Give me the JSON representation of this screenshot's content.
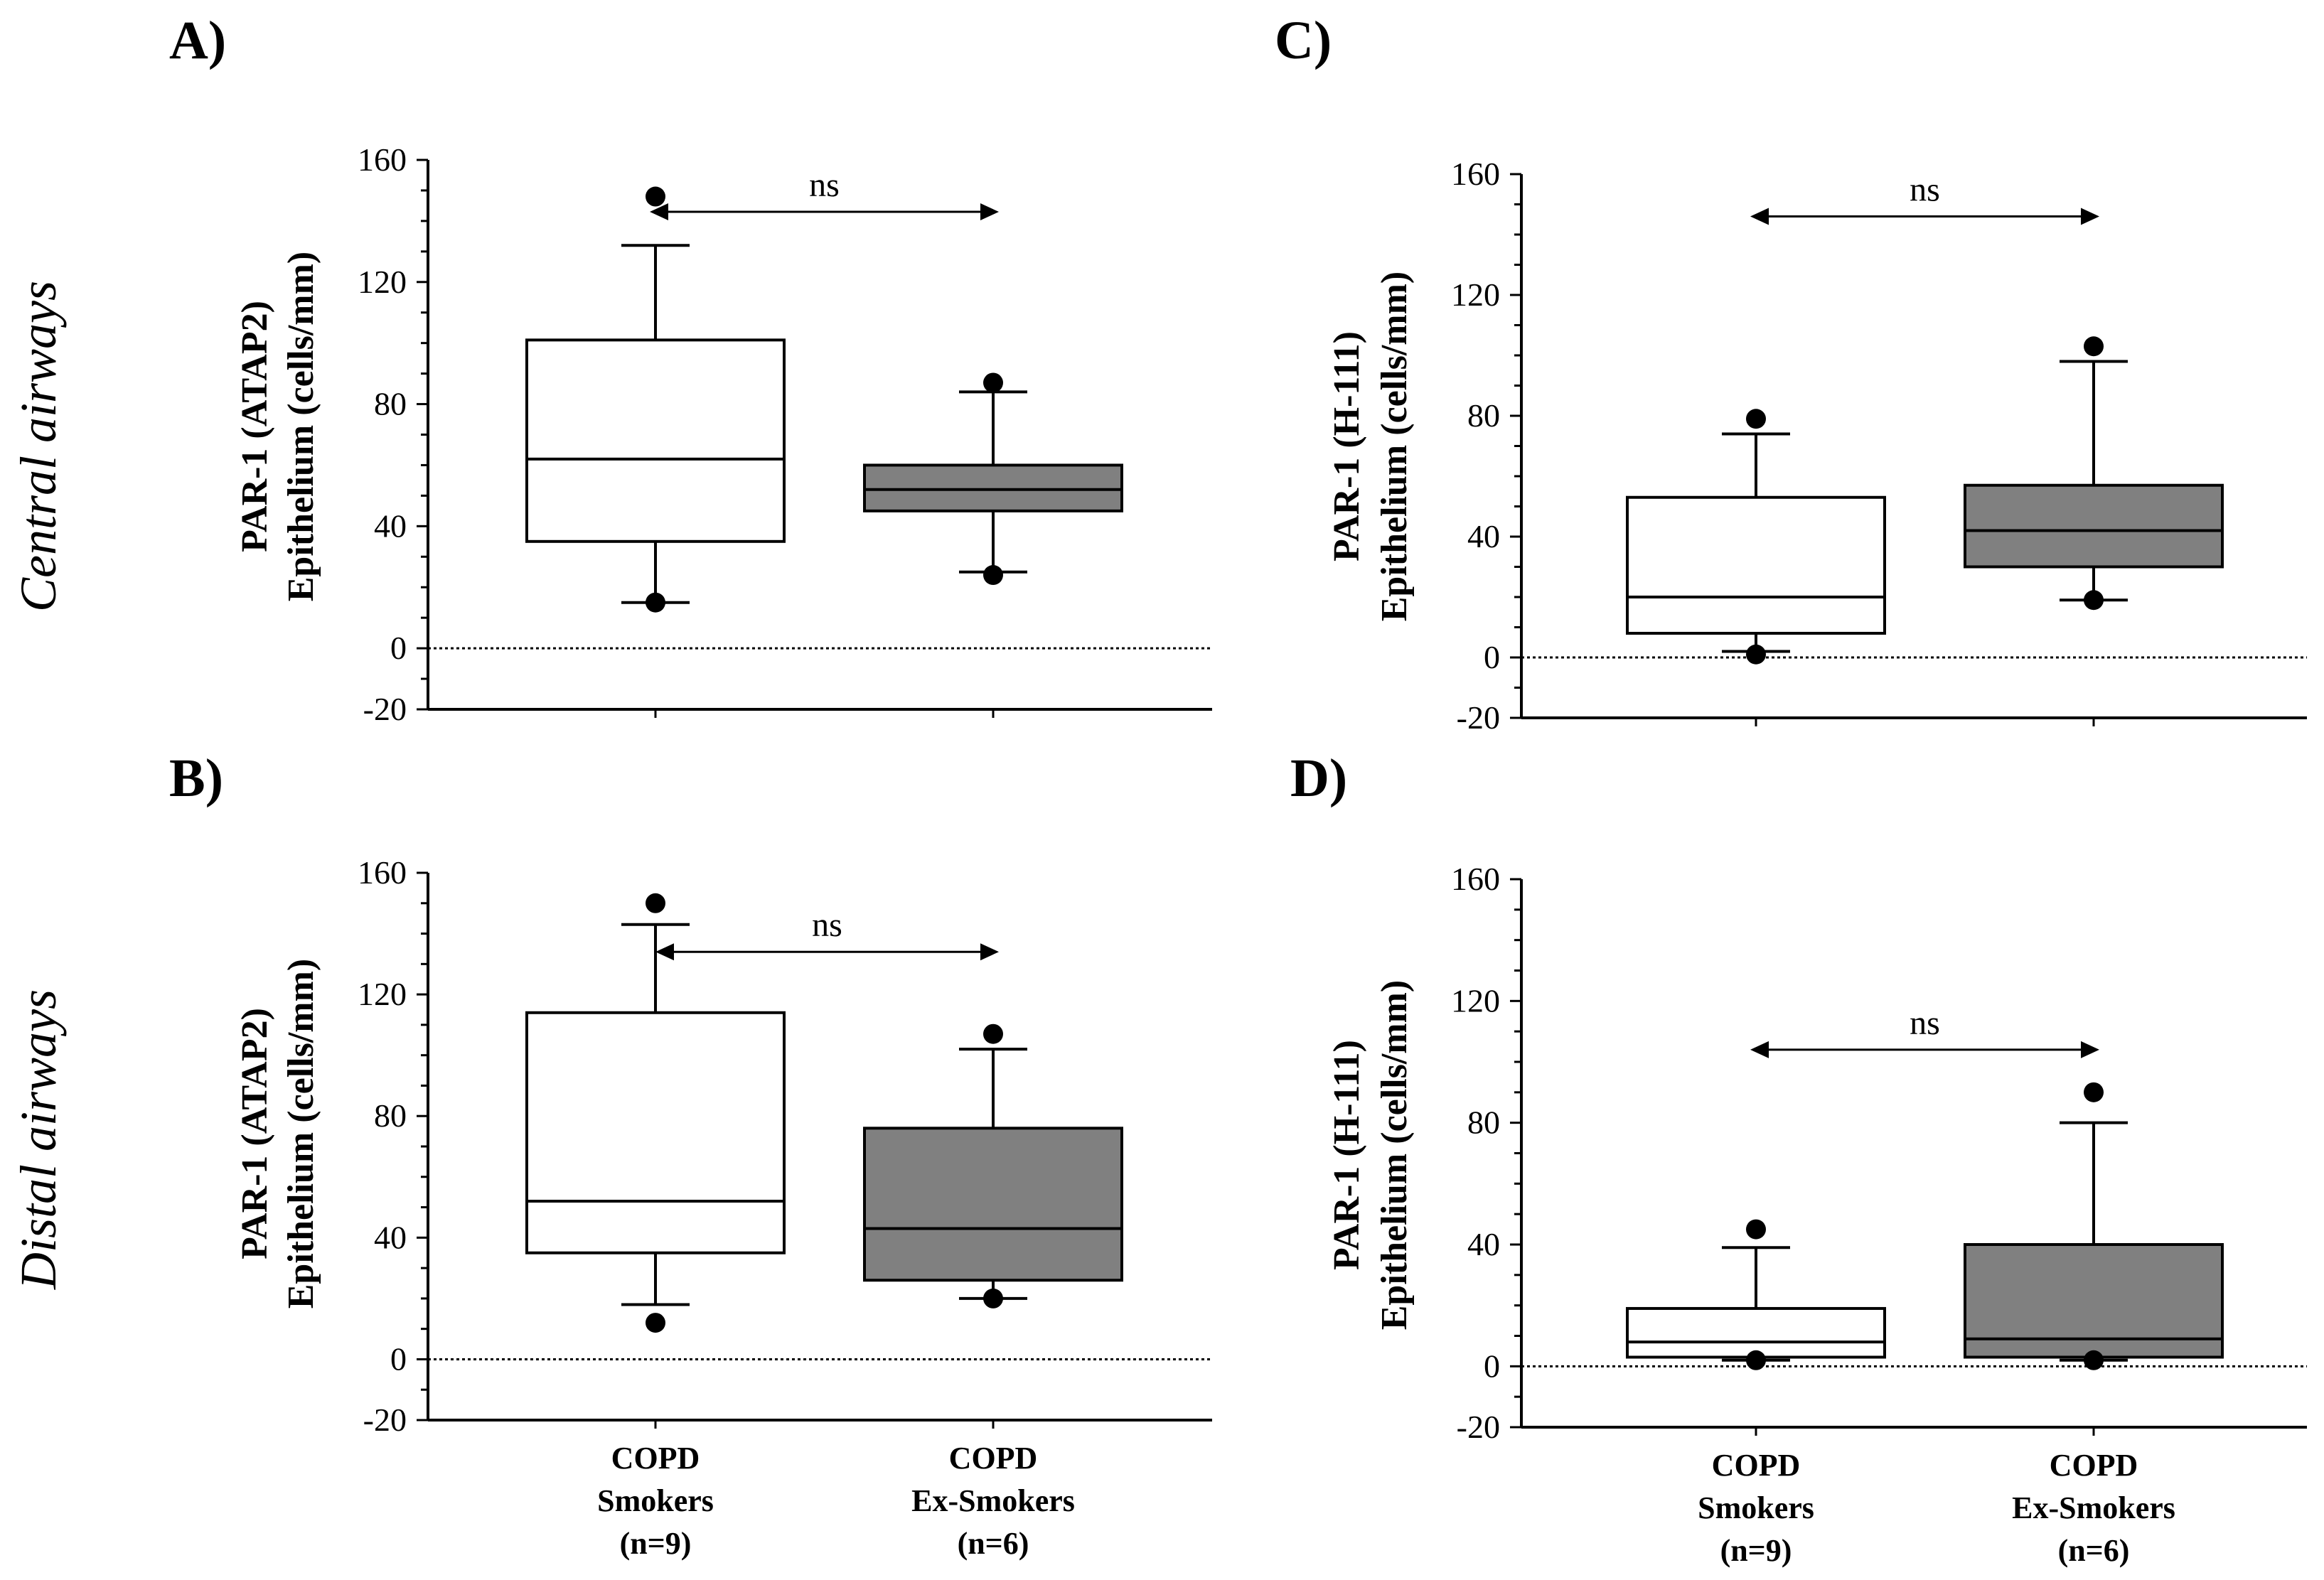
{
  "row_labels": [
    "Central airways",
    "Distal airways"
  ],
  "colors": {
    "smokers_fill": "#ffffff",
    "ex_smokers_fill": "#808080",
    "ink": "#000000"
  },
  "chart_data": [
    {
      "panel": "A)",
      "type": "boxplot",
      "row": "Central airways",
      "ylabel": [
        "PAR-1 (ATAP2)",
        "Epithelium (cells/mm)"
      ],
      "ylim": [
        -20,
        160
      ],
      "yticks": [
        -20,
        0,
        40,
        80,
        120,
        160
      ],
      "x_categories": [],
      "reference_line": 0,
      "significance": {
        "label": "ns",
        "y": 143,
        "from": 0,
        "to": 1
      },
      "groups": [
        {
          "name": "COPD Smokers",
          "n": 9,
          "whisker_low": 15,
          "q1": 35,
          "median": 62,
          "q3": 101,
          "whisker_high": 132,
          "points": [
            148,
            15
          ]
        },
        {
          "name": "COPD Ex-Smokers",
          "n": 6,
          "whisker_low": 25,
          "q1": 45,
          "median": 52,
          "q3": 60,
          "whisker_high": 84,
          "points": [
            87,
            24
          ]
        }
      ]
    },
    {
      "panel": "C)",
      "type": "boxplot",
      "row": "Central airways",
      "ylabel": [
        "PAR-1 (H-111)",
        "Epithelium (cells/mm)"
      ],
      "ylim": [
        -20,
        160
      ],
      "yticks": [
        -20,
        0,
        40,
        80,
        120,
        160
      ],
      "x_categories": [],
      "reference_line": 0,
      "significance": {
        "label": "ns",
        "y": 146,
        "from": 0,
        "to": 1
      },
      "groups": [
        {
          "name": "COPD Smokers",
          "n": 9,
          "whisker_low": 2,
          "q1": 8,
          "median": 20,
          "q3": 53,
          "whisker_high": 74,
          "points": [
            79,
            1
          ]
        },
        {
          "name": "COPD Ex-Smokers",
          "n": 6,
          "whisker_low": 19,
          "q1": 30,
          "median": 42,
          "q3": 57,
          "whisker_high": 98,
          "points": [
            103,
            19
          ]
        }
      ]
    },
    {
      "panel": "B)",
      "type": "boxplot",
      "row": "Distal airways",
      "ylabel": [
        "PAR-1 (ATAP2)",
        "Epithelium (cells/mm)"
      ],
      "ylim": [
        -20,
        160
      ],
      "yticks": [
        -20,
        0,
        40,
        80,
        120,
        160
      ],
      "x_categories": [
        [
          "COPD",
          "Smokers",
          "(n=9)"
        ],
        [
          "COPD",
          "Ex-Smokers",
          "(n=6)"
        ]
      ],
      "reference_line": 0,
      "significance": {
        "label": "ns",
        "y": 134,
        "from": 0,
        "to": 1
      },
      "groups": [
        {
          "name": "COPD Smokers",
          "n": 9,
          "whisker_low": 18,
          "q1": 35,
          "median": 52,
          "q3": 114,
          "whisker_high": 143,
          "points": [
            150,
            12
          ]
        },
        {
          "name": "COPD Ex-Smokers",
          "n": 6,
          "whisker_low": 20,
          "q1": 26,
          "median": 43,
          "q3": 76,
          "whisker_high": 102,
          "points": [
            107,
            20
          ]
        }
      ]
    },
    {
      "panel": "D)",
      "type": "boxplot",
      "row": "Distal airways",
      "ylabel": [
        "PAR-1 (H-111)",
        "Epithelium (cells/mm)"
      ],
      "ylim": [
        -20,
        160
      ],
      "yticks": [
        -20,
        0,
        40,
        80,
        120,
        160
      ],
      "x_categories": [
        [
          "COPD",
          "Smokers",
          "(n=9)"
        ],
        [
          "COPD",
          "Ex-Smokers",
          "(n=6)"
        ]
      ],
      "reference_line": 0,
      "significance": {
        "label": "ns",
        "y": 104,
        "from": 0,
        "to": 1
      },
      "groups": [
        {
          "name": "COPD Smokers",
          "n": 9,
          "whisker_low": 2,
          "q1": 3,
          "median": 8,
          "q3": 19,
          "whisker_high": 39,
          "points": [
            45,
            2
          ]
        },
        {
          "name": "COPD Ex-Smokers",
          "n": 6,
          "whisker_low": 2,
          "q1": 3,
          "median": 9,
          "q3": 40,
          "whisker_high": 80,
          "points": [
            90,
            2
          ]
        }
      ]
    }
  ]
}
